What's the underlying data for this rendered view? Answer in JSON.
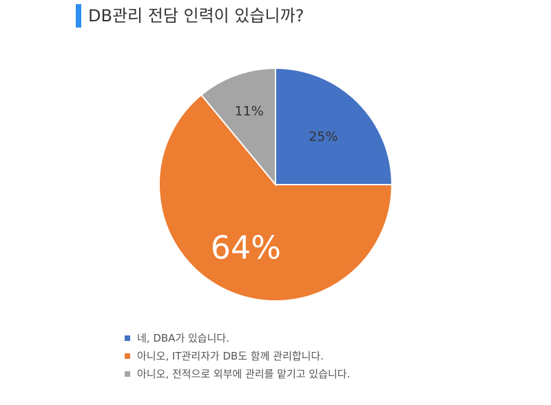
{
  "chart_data": {
    "type": "pie",
    "title": "DB관리 전담 인력이 있습니까?",
    "slices": [
      {
        "label": "네, DBA가 있습니다.",
        "value": 25,
        "display": "25%",
        "color": "#4472c4"
      },
      {
        "label": "아니오, IT관리자가 DB도 함께 관리합니다.",
        "value": 64,
        "display": "64%",
        "color": "#ed7d31"
      },
      {
        "label": "아니오, 전적으로 외부에 관리를 맡기고 있습니다.",
        "value": 11,
        "display": "11%",
        "color": "#a5a5a5"
      }
    ],
    "legend_position": "bottom-left"
  }
}
